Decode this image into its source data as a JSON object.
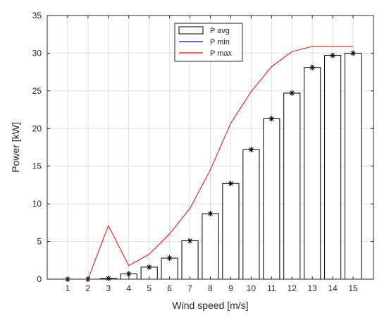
{
  "chart_data": {
    "type": "bar",
    "xlabel": "Wind speed [m/s]",
    "ylabel": "Power [kW]",
    "xlim": [
      0,
      16
    ],
    "ylim": [
      0,
      35
    ],
    "yticks": [
      0,
      5,
      10,
      15,
      20,
      25,
      30,
      35
    ],
    "categories": [
      1,
      2,
      3,
      4,
      5,
      6,
      7,
      8,
      9,
      10,
      11,
      12,
      13,
      14,
      15
    ],
    "grid": true,
    "legend_position": "top-center",
    "series": [
      {
        "name": "P avg",
        "kind": "bar",
        "color": "#000000",
        "values": [
          0,
          0,
          0.1,
          0.7,
          1.6,
          2.8,
          5.1,
          8.7,
          12.7,
          17.2,
          21.3,
          24.7,
          28.1,
          29.7,
          30.0
        ]
      },
      {
        "name": "P min",
        "kind": "line",
        "color": "#0000ff",
        "values": [
          0,
          0,
          0,
          0,
          0,
          0,
          0,
          0,
          0,
          0,
          0,
          0,
          0,
          0,
          0
        ]
      },
      {
        "name": "P max",
        "kind": "line",
        "color": "#ff0000",
        "values": [
          0,
          0,
          7.1,
          1.8,
          3.3,
          6.0,
          9.4,
          14.5,
          20.7,
          24.9,
          28.2,
          30.2,
          30.9,
          30.9,
          30.9
        ]
      }
    ]
  }
}
